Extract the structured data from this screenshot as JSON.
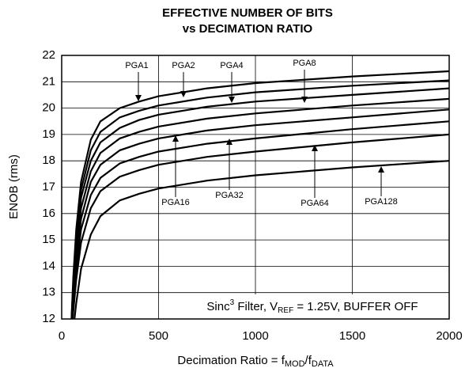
{
  "chart_data": {
    "type": "line",
    "title": [
      "EFFECTIVE NUMBER OF BITS",
      "vs DECIMATION RATIO"
    ],
    "y_label": "ENOB (rms)",
    "x_label": [
      "Decimation Ratio = f",
      "MOD",
      "/f",
      "DATA"
    ],
    "annotation": [
      "Sinc",
      "3",
      " Filter, V",
      "REF",
      " = 1.25V, BUFFER OFF"
    ],
    "x": [
      45,
      60,
      75,
      100,
      150,
      200,
      300,
      400,
      500,
      750,
      1000,
      1500,
      2000
    ],
    "series": [
      {
        "name": "PGA1",
        "color": "#000000",
        "values": [
          11,
          13.6,
          15.4,
          17.2,
          18.8,
          19.5,
          20.0,
          20.25,
          20.45,
          20.75,
          20.95,
          21.2,
          21.4
        ]
      },
      {
        "name": "PGA2",
        "color": "#000000",
        "values": [
          11,
          13.4,
          15.1,
          16.9,
          18.4,
          19.1,
          19.65,
          19.9,
          20.1,
          20.4,
          20.6,
          20.85,
          21.05
        ]
      },
      {
        "name": "PGA4",
        "color": "#000000",
        "values": [
          11,
          13.2,
          14.8,
          16.6,
          18.0,
          18.7,
          19.25,
          19.55,
          19.75,
          20.05,
          20.25,
          20.5,
          20.75
        ]
      },
      {
        "name": "PGA8",
        "color": "#000000",
        "values": [
          11,
          13.0,
          14.5,
          16.2,
          17.6,
          18.3,
          18.85,
          19.1,
          19.3,
          19.6,
          19.8,
          20.1,
          20.35
        ]
      },
      {
        "name": "PGA16",
        "color": "#000000",
        "values": [
          11,
          12.8,
          14.2,
          15.8,
          17.2,
          17.85,
          18.4,
          18.65,
          18.85,
          19.15,
          19.35,
          19.65,
          19.95
        ]
      },
      {
        "name": "PGA32",
        "color": "#000000",
        "values": [
          11,
          12.6,
          13.9,
          15.4,
          16.7,
          17.35,
          17.9,
          18.15,
          18.35,
          18.65,
          18.85,
          19.2,
          19.5
        ]
      },
      {
        "name": "PGA64",
        "color": "#000000",
        "values": [
          11,
          12.3,
          13.5,
          14.9,
          16.2,
          16.85,
          17.4,
          17.65,
          17.85,
          18.15,
          18.35,
          18.7,
          19.0
        ]
      },
      {
        "name": "PGA128",
        "color": "#000000",
        "values": [
          10.5,
          11.6,
          12.6,
          13.9,
          15.2,
          15.9,
          16.5,
          16.75,
          16.95,
          17.25,
          17.45,
          17.75,
          18.0
        ]
      }
    ],
    "xlim": [
      0,
      2000
    ],
    "xticks": [
      0,
      500,
      1000,
      1500,
      2000
    ],
    "ylim": [
      12,
      22
    ],
    "yticks": [
      12,
      13,
      14,
      15,
      16,
      17,
      18,
      19,
      20,
      21,
      22
    ],
    "grid": true
  }
}
